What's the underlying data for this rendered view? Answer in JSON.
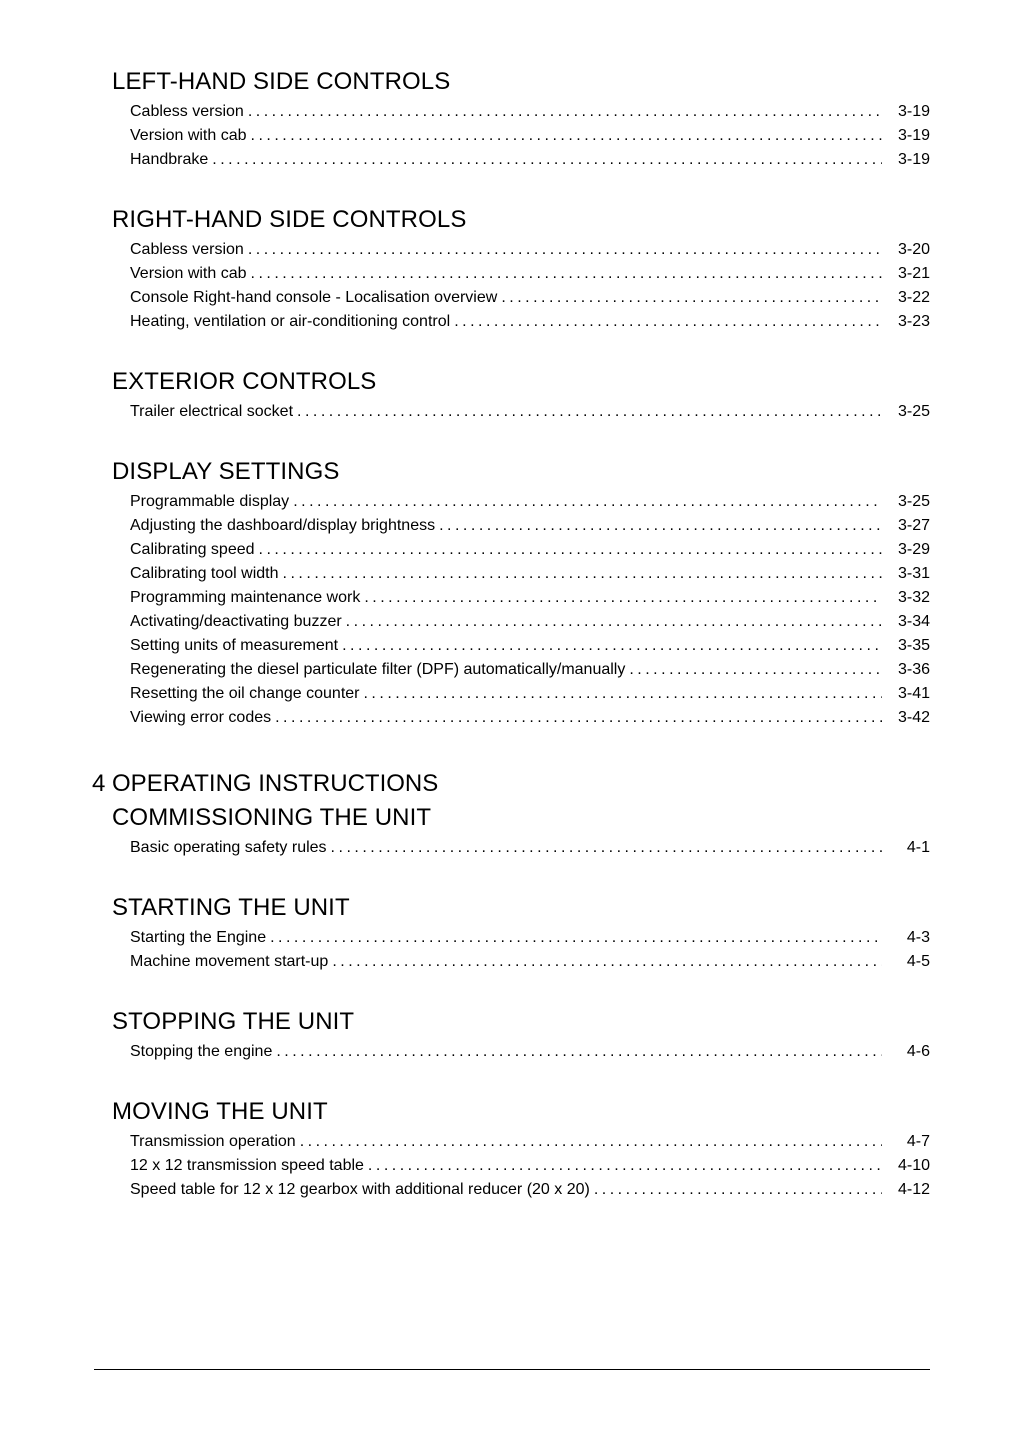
{
  "colors": {
    "text": "#000000",
    "background": "#ffffff",
    "rule": "#000000"
  },
  "typography": {
    "heading_fontsize_pt": 18,
    "body_fontsize_pt": 12,
    "font_family": "Arial"
  },
  "sections": {
    "left_hand": {
      "title": "LEFT-HAND SIDE CONTROLS",
      "items": [
        {
          "label": "Cabless version",
          "page": "3-19"
        },
        {
          "label": "Version with cab",
          "page": "3-19"
        },
        {
          "label": "Handbrake",
          "page": "3-19"
        }
      ]
    },
    "right_hand": {
      "title": "RIGHT-HAND SIDE CONTROLS",
      "items": [
        {
          "label": "Cabless version",
          "page": "3-20"
        },
        {
          "label": "Version with cab",
          "page": "3-21"
        },
        {
          "label": "Console Right-hand console - Localisation overview",
          "page": "3-22"
        },
        {
          "label": "Heating, ventilation or air-conditioning control",
          "page": "3-23"
        }
      ]
    },
    "exterior": {
      "title": "EXTERIOR CONTROLS",
      "items": [
        {
          "label": "Trailer electrical socket",
          "page": "3-25"
        }
      ]
    },
    "display_settings": {
      "title": "DISPLAY SETTINGS",
      "items": [
        {
          "label": "Programmable display",
          "page": "3-25"
        },
        {
          "label": "Adjusting the dashboard/display brightness",
          "page": "3-27"
        },
        {
          "label": "Calibrating speed",
          "page": "3-29"
        },
        {
          "label": "Calibrating tool width",
          "page": "3-31"
        },
        {
          "label": "Programming maintenance work",
          "page": "3-32"
        },
        {
          "label": "Activating/deactivating buzzer",
          "page": "3-34"
        },
        {
          "label": "Setting units of measurement",
          "page": "3-35"
        },
        {
          "label": "Regenerating the diesel particulate filter (DPF) automatically/manually",
          "page": "3-36"
        },
        {
          "label": "Resetting the oil change counter",
          "page": "3-41"
        },
        {
          "label": "Viewing error codes",
          "page": "3-42"
        }
      ]
    },
    "chapter4": {
      "title": "4 OPERATING INSTRUCTIONS"
    },
    "commissioning": {
      "title": "COMMISSIONING THE UNIT",
      "items": [
        {
          "label": "Basic operating safety rules",
          "page": "4-1"
        }
      ]
    },
    "starting": {
      "title": "STARTING THE UNIT",
      "items": [
        {
          "label": "Starting the Engine",
          "page": "4-3"
        },
        {
          "label": "Machine movement start-up",
          "page": "4-5"
        }
      ]
    },
    "stopping": {
      "title": "STOPPING THE UNIT",
      "items": [
        {
          "label": "Stopping the engine",
          "page": "4-6"
        }
      ]
    },
    "moving": {
      "title": "MOVING THE UNIT",
      "items": [
        {
          "label": "Transmission operation",
          "page": "4-7"
        },
        {
          "label": "12 x 12 transmission speed table",
          "page": "4-10"
        },
        {
          "label": "Speed table for 12 x 12 gearbox with additional reducer (20 x 20)",
          "page": "4-12"
        }
      ]
    }
  }
}
